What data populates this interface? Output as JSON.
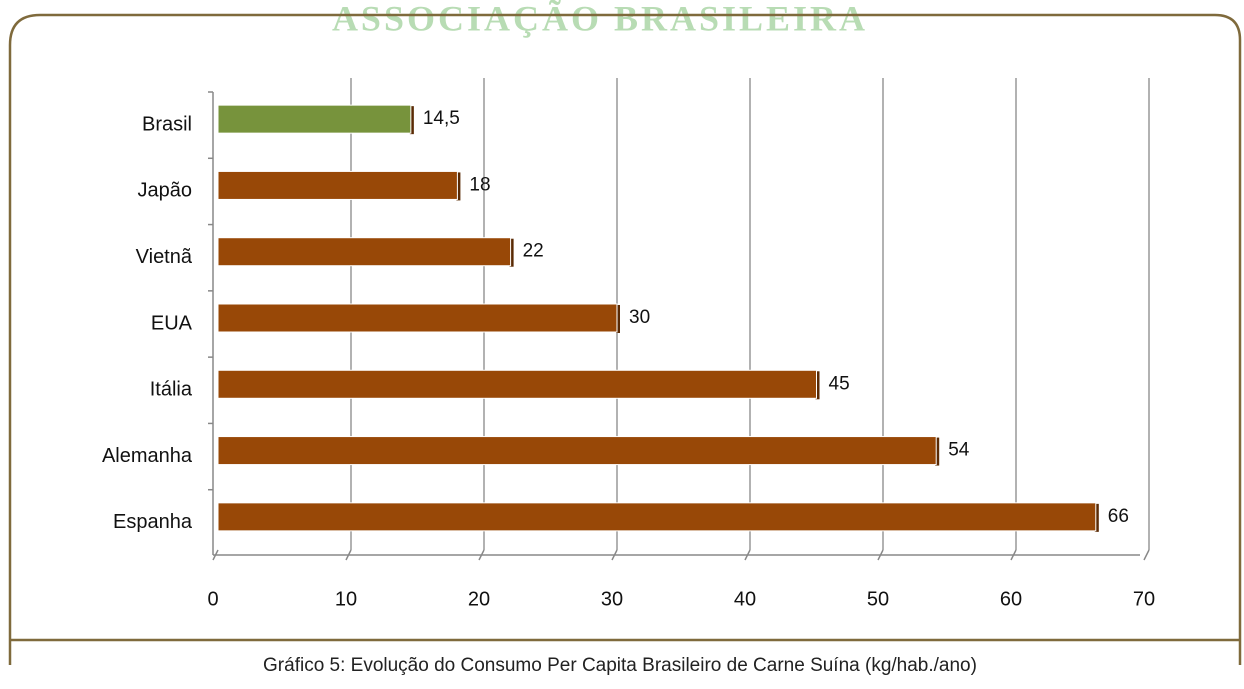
{
  "header": "ASSOCIAÇÃO BRASILEIRA",
  "chart_data": {
    "type": "bar",
    "orientation": "horizontal",
    "categories": [
      "Brasil",
      "Japão",
      "Vietnã",
      "EUA",
      "Itália",
      "Alemanha",
      "Espanha"
    ],
    "values": [
      14.5,
      18,
      22,
      30,
      45,
      54,
      66
    ],
    "value_labels": [
      "14,5",
      "18",
      "22",
      "30",
      "45",
      "54",
      "66"
    ],
    "colors": [
      "#77933c",
      "#984807",
      "#984807",
      "#984807",
      "#984807",
      "#984807",
      "#984807"
    ],
    "xlim": [
      0,
      70
    ],
    "xticks": [
      0,
      10,
      20,
      30,
      40,
      50,
      60,
      70
    ],
    "grid": true,
    "caption": "Gráfico 5:  Evolução do Consumo Per Capita Brasileiro de Carne Suína (kg/hab./ano)"
  }
}
